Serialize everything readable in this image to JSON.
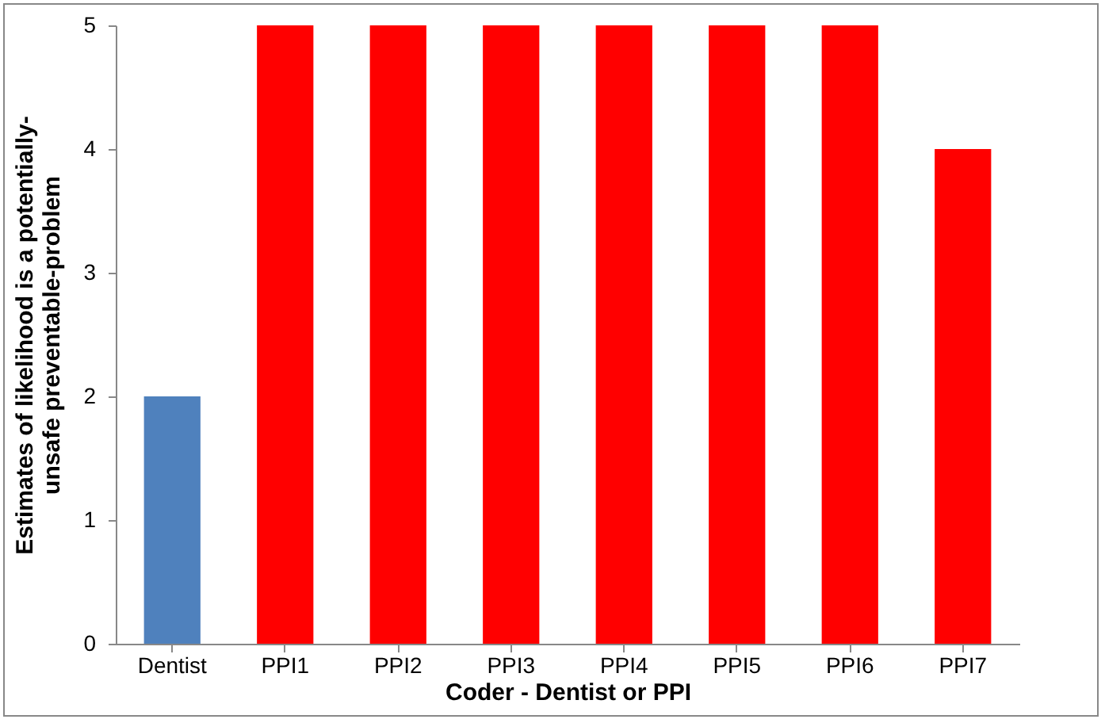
{
  "chart_data": {
    "type": "bar",
    "xlabel": "Coder - Dentist or PPI",
    "ylabel": "Estimates of likelihood is a potentially-unsafe preventable-problem",
    "categories": [
      "Dentist",
      "PPI1",
      "PPI2",
      "PPI3",
      "PPI4",
      "PPI5",
      "PPI6",
      "PPI7"
    ],
    "values": [
      2,
      5,
      5,
      5,
      5,
      5,
      5,
      4
    ],
    "colors": [
      "#4f81bd",
      "#ff0000",
      "#ff0000",
      "#ff0000",
      "#ff0000",
      "#ff0000",
      "#ff0000",
      "#ff0000"
    ],
    "ylim": [
      0,
      5
    ],
    "yticks": [
      0,
      1,
      2,
      3,
      4,
      5
    ],
    "grid": false
  }
}
